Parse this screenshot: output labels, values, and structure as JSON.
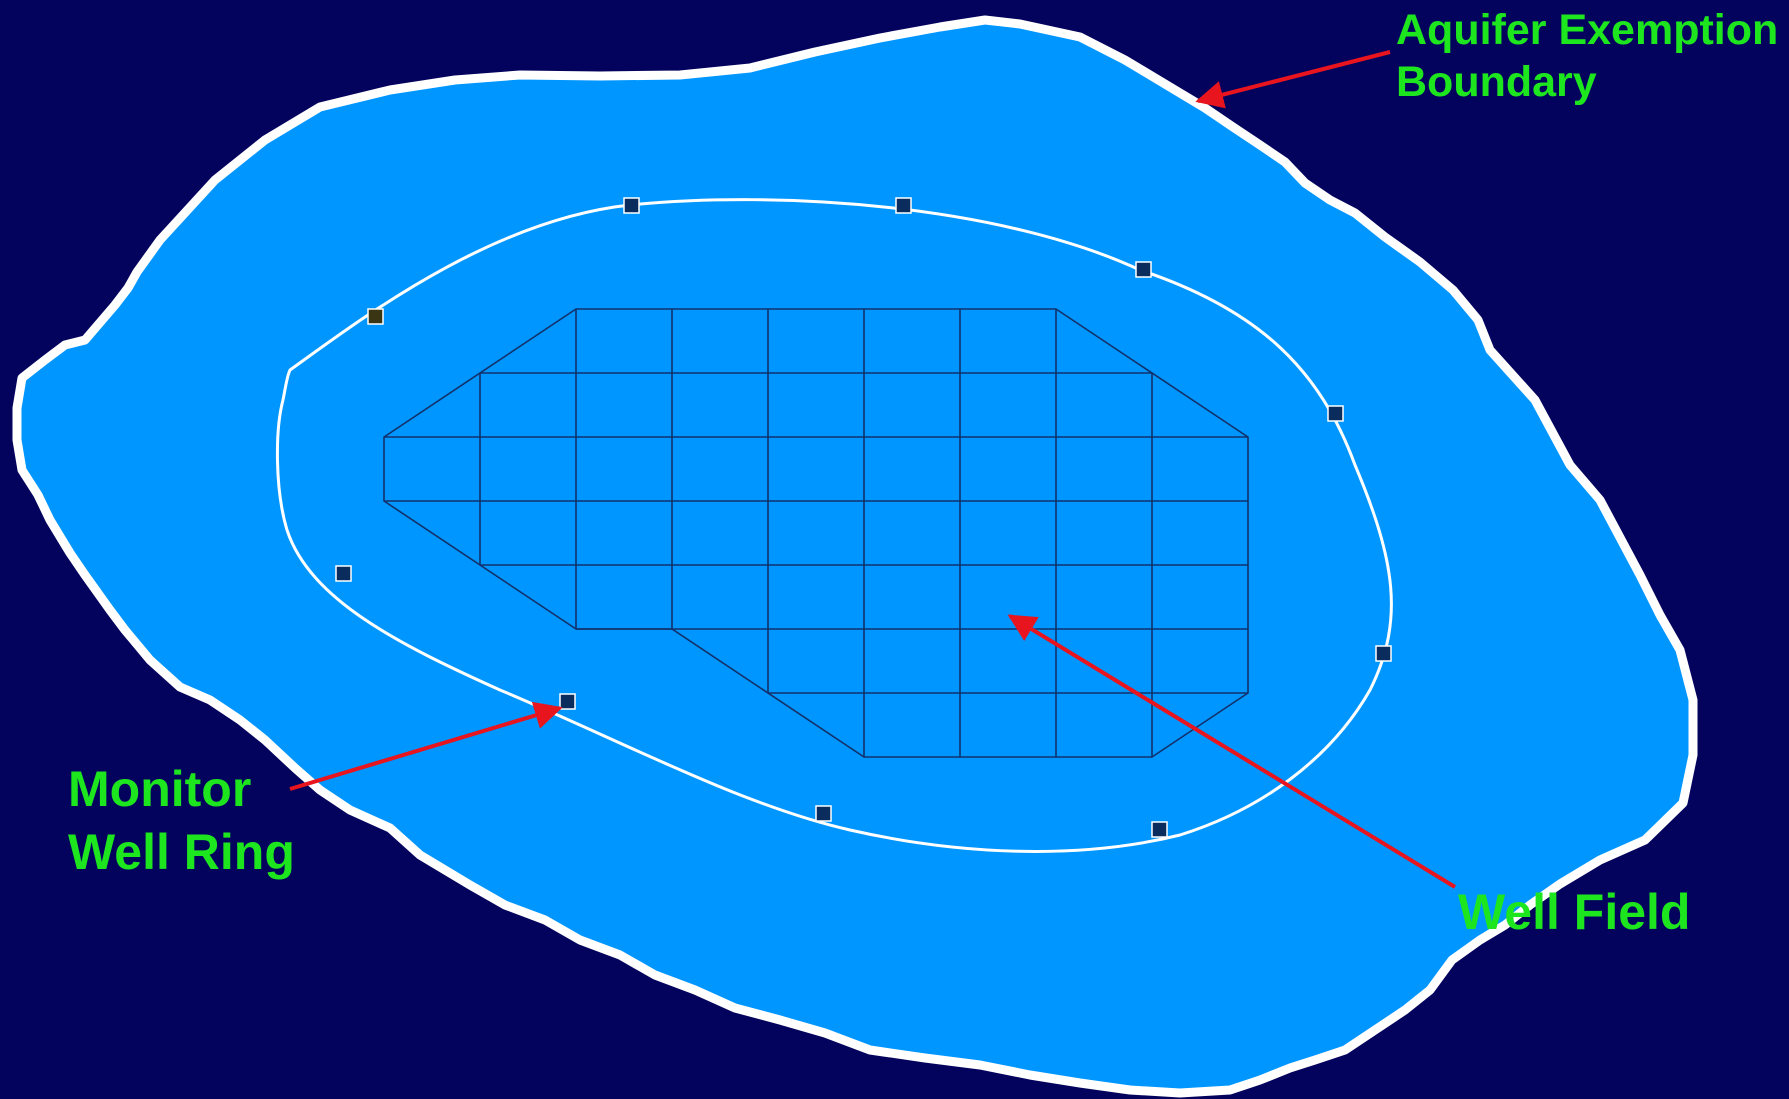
{
  "labels": {
    "aquifer_line1": "Aquifer Exemption",
    "aquifer_line2": "Boundary",
    "monitor_line1": "Monitor",
    "monitor_line2": "Well Ring",
    "well_field": "Well Field"
  },
  "colors": {
    "background": "#03035e",
    "aquifer_fill": "#0096ff",
    "outline": "#ffffff",
    "grid_line": "#12306a",
    "well_marker": "#0b2d5e",
    "label_text": "#1ee61e",
    "arrow": "#e8141e"
  },
  "icons": {
    "arrow": "red-arrow-icon",
    "monitor_well": "square-marker-icon"
  }
}
